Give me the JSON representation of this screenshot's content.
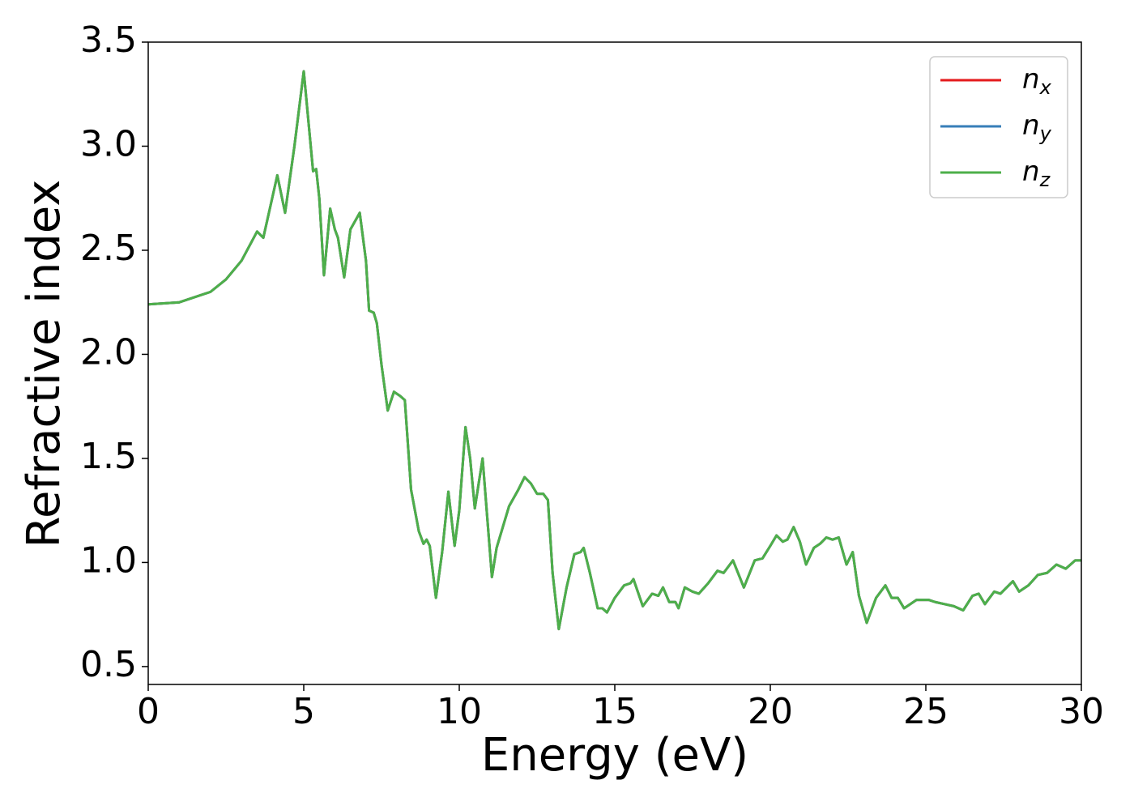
{
  "chart_data": {
    "type": "line",
    "xlabel": "Energy (eV)",
    "ylabel": "Refractive index",
    "x": [
      0,
      1,
      2,
      2.5,
      3,
      3.5,
      3.7,
      4.15,
      4.4,
      4.7,
      5.0,
      5.3,
      5.4,
      5.5,
      5.65,
      5.85,
      6.0,
      6.1,
      6.3,
      6.5,
      6.8,
      7.0,
      7.1,
      7.25,
      7.35,
      7.5,
      7.7,
      7.9,
      8.1,
      8.25,
      8.45,
      8.7,
      8.85,
      8.95,
      9.05,
      9.25,
      9.45,
      9.65,
      9.85,
      10.0,
      10.2,
      10.35,
      10.5,
      10.75,
      11.05,
      11.2,
      11.4,
      11.6,
      11.9,
      12.1,
      12.3,
      12.5,
      12.7,
      12.85,
      13.0,
      13.2,
      13.45,
      13.7,
      13.9,
      14.0,
      14.2,
      14.45,
      14.6,
      14.75,
      15.0,
      15.3,
      15.5,
      15.6,
      15.9,
      16.2,
      16.4,
      16.55,
      16.75,
      16.95,
      17.05,
      17.25,
      17.5,
      17.7,
      18.0,
      18.3,
      18.5,
      18.8,
      19.15,
      19.5,
      19.75,
      20.0,
      20.2,
      20.4,
      20.55,
      20.75,
      20.95,
      21.15,
      21.4,
      21.6,
      21.8,
      22.0,
      22.2,
      22.45,
      22.65,
      22.85,
      23.1,
      23.4,
      23.7,
      23.9,
      24.1,
      24.3,
      24.7,
      25.1,
      25.3,
      25.6,
      25.9,
      26.2,
      26.5,
      26.7,
      26.9,
      27.2,
      27.4,
      27.8,
      28.0,
      28.3,
      28.6,
      28.9,
      29.2,
      29.5,
      29.8,
      30.0
    ],
    "series": [
      {
        "name": "nx",
        "color": "#e41a1c",
        "values": [
          2.24,
          2.25,
          2.3,
          2.36,
          2.45,
          2.59,
          2.56,
          2.86,
          2.68,
          3.0,
          3.36,
          2.88,
          2.89,
          2.75,
          2.38,
          2.7,
          2.6,
          2.56,
          2.37,
          2.6,
          2.68,
          2.45,
          2.21,
          2.2,
          2.15,
          1.95,
          1.73,
          1.82,
          1.8,
          1.78,
          1.35,
          1.15,
          1.09,
          1.11,
          1.08,
          0.83,
          1.05,
          1.34,
          1.08,
          1.25,
          1.65,
          1.5,
          1.26,
          1.5,
          0.93,
          1.07,
          1.17,
          1.27,
          1.35,
          1.41,
          1.38,
          1.33,
          1.33,
          1.3,
          0.95,
          0.68,
          0.88,
          1.04,
          1.05,
          1.07,
          0.95,
          0.78,
          0.78,
          0.76,
          0.83,
          0.89,
          0.9,
          0.92,
          0.79,
          0.85,
          0.84,
          0.88,
          0.81,
          0.81,
          0.78,
          0.88,
          0.86,
          0.85,
          0.9,
          0.96,
          0.95,
          1.01,
          0.88,
          1.01,
          1.02,
          1.08,
          1.13,
          1.1,
          1.11,
          1.17,
          1.1,
          0.99,
          1.07,
          1.09,
          1.12,
          1.11,
          1.12,
          0.99,
          1.05,
          0.84,
          0.71,
          0.83,
          0.89,
          0.83,
          0.83,
          0.78,
          0.82,
          0.82,
          0.81,
          0.8,
          0.79,
          0.77,
          0.84,
          0.85,
          0.8,
          0.86,
          0.85,
          0.91,
          0.86,
          0.89,
          0.94,
          0.95,
          0.99,
          0.97,
          1.01,
          1.01
        ]
      },
      {
        "name": "ny",
        "color": "#377eb8",
        "values": [
          2.24,
          2.25,
          2.3,
          2.36,
          2.45,
          2.59,
          2.56,
          2.86,
          2.68,
          3.0,
          3.36,
          2.88,
          2.89,
          2.75,
          2.38,
          2.7,
          2.6,
          2.56,
          2.37,
          2.6,
          2.68,
          2.45,
          2.21,
          2.2,
          2.15,
          1.95,
          1.73,
          1.82,
          1.8,
          1.78,
          1.35,
          1.15,
          1.09,
          1.11,
          1.08,
          0.83,
          1.05,
          1.34,
          1.08,
          1.25,
          1.65,
          1.5,
          1.26,
          1.5,
          0.93,
          1.07,
          1.17,
          1.27,
          1.35,
          1.41,
          1.38,
          1.33,
          1.33,
          1.3,
          0.95,
          0.68,
          0.88,
          1.04,
          1.05,
          1.07,
          0.95,
          0.78,
          0.78,
          0.76,
          0.83,
          0.89,
          0.9,
          0.92,
          0.79,
          0.85,
          0.84,
          0.88,
          0.81,
          0.81,
          0.78,
          0.88,
          0.86,
          0.85,
          0.9,
          0.96,
          0.95,
          1.01,
          0.88,
          1.01,
          1.02,
          1.08,
          1.13,
          1.1,
          1.11,
          1.17,
          1.1,
          0.99,
          1.07,
          1.09,
          1.12,
          1.11,
          1.12,
          0.99,
          1.05,
          0.84,
          0.71,
          0.83,
          0.89,
          0.83,
          0.83,
          0.78,
          0.82,
          0.82,
          0.81,
          0.8,
          0.79,
          0.77,
          0.84,
          0.85,
          0.8,
          0.86,
          0.85,
          0.91,
          0.86,
          0.89,
          0.94,
          0.95,
          0.99,
          0.97,
          1.01,
          1.01
        ]
      },
      {
        "name": "nz",
        "color": "#4daf4a",
        "values": [
          2.24,
          2.25,
          2.3,
          2.36,
          2.45,
          2.59,
          2.56,
          2.86,
          2.68,
          3.0,
          3.36,
          2.88,
          2.89,
          2.75,
          2.38,
          2.7,
          2.6,
          2.56,
          2.37,
          2.6,
          2.68,
          2.45,
          2.21,
          2.2,
          2.15,
          1.95,
          1.73,
          1.82,
          1.8,
          1.78,
          1.35,
          1.15,
          1.09,
          1.11,
          1.08,
          0.83,
          1.05,
          1.34,
          1.08,
          1.25,
          1.65,
          1.5,
          1.26,
          1.5,
          0.93,
          1.07,
          1.17,
          1.27,
          1.35,
          1.41,
          1.38,
          1.33,
          1.33,
          1.3,
          0.95,
          0.68,
          0.88,
          1.04,
          1.05,
          1.07,
          0.95,
          0.78,
          0.78,
          0.76,
          0.83,
          0.89,
          0.9,
          0.92,
          0.79,
          0.85,
          0.84,
          0.88,
          0.81,
          0.81,
          0.78,
          0.88,
          0.86,
          0.85,
          0.9,
          0.96,
          0.95,
          1.01,
          0.88,
          1.01,
          1.02,
          1.08,
          1.13,
          1.1,
          1.11,
          1.17,
          1.1,
          0.99,
          1.07,
          1.09,
          1.12,
          1.11,
          1.12,
          0.99,
          1.05,
          0.84,
          0.71,
          0.83,
          0.89,
          0.83,
          0.83,
          0.78,
          0.82,
          0.82,
          0.81,
          0.8,
          0.79,
          0.77,
          0.84,
          0.85,
          0.8,
          0.86,
          0.85,
          0.91,
          0.86,
          0.89,
          0.94,
          0.95,
          0.99,
          0.97,
          1.01,
          1.01
        ]
      }
    ],
    "xlim": [
      0,
      30
    ],
    "xticks": [
      0,
      5,
      10,
      15,
      20,
      25,
      30
    ],
    "ylim": [
      0.414,
      3.5
    ],
    "yticks": [
      0.5,
      {
        "value": 1,
        "label": "1.0"
      },
      1.5,
      {
        "value": 2,
        "label": "2.0"
      },
      2.5,
      {
        "value": 3,
        "label": "3.0"
      },
      3.5
    ],
    "legend": "upper right",
    "grid": false
  }
}
